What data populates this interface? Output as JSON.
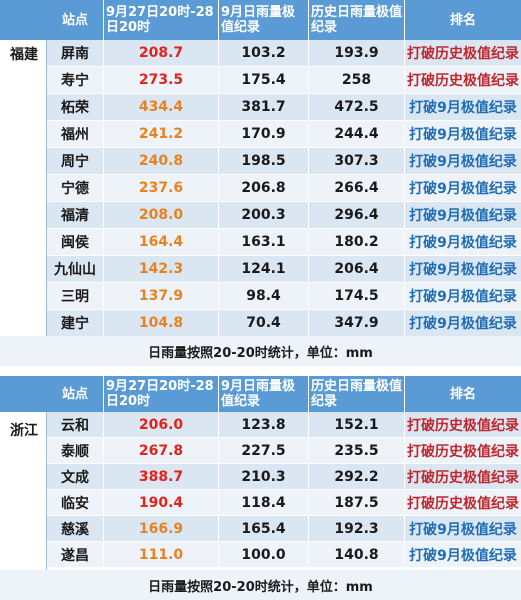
{
  "headers": {
    "station": "站点",
    "period": "9月27日20时-28日20时",
    "sept_record": "9月日雨量极值纪录",
    "hist_record": "历史日雨量极值纪录",
    "rank": "排名"
  },
  "fujian": {
    "province": "福建",
    "rows": [
      {
        "station": "屏南",
        "rain": "208.7",
        "sept": "103.2",
        "hist": "193.9",
        "rank": "打破历史极值纪录",
        "rain_color": "red",
        "rank_color": "red"
      },
      {
        "station": "寿宁",
        "rain": "273.5",
        "sept": "175.4",
        "hist": "258",
        "rank": "打破历史极值纪录",
        "rain_color": "red",
        "rank_color": "red"
      },
      {
        "station": "柘荣",
        "rain": "434.4",
        "sept": "381.7",
        "hist": "472.5",
        "rank": "打破9月极值纪录",
        "rain_color": "orange",
        "rank_color": "blue"
      },
      {
        "station": "福州",
        "rain": "241.2",
        "sept": "170.9",
        "hist": "244.4",
        "rank": "打破9月极值纪录",
        "rain_color": "orange",
        "rank_color": "blue"
      },
      {
        "station": "周宁",
        "rain": "240.8",
        "sept": "198.5",
        "hist": "307.3",
        "rank": "打破9月极值纪录",
        "rain_color": "orange",
        "rank_color": "blue"
      },
      {
        "station": "宁德",
        "rain": "237.6",
        "sept": "206.8",
        "hist": "266.4",
        "rank": "打破9月极值纪录",
        "rain_color": "orange",
        "rank_color": "blue"
      },
      {
        "station": "福清",
        "rain": "208.0",
        "sept": "200.3",
        "hist": "296.4",
        "rank": "打破9月极值纪录",
        "rain_color": "orange",
        "rank_color": "blue"
      },
      {
        "station": "闽侯",
        "rain": "164.4",
        "sept": "163.1",
        "hist": "180.2",
        "rank": "打破9月极值纪录",
        "rain_color": "orange",
        "rank_color": "blue"
      },
      {
        "station": "九仙山",
        "rain": "142.3",
        "sept": "124.1",
        "hist": "206.4",
        "rank": "打破9月极值纪录",
        "rain_color": "orange",
        "rank_color": "blue"
      },
      {
        "station": "三明",
        "rain": "137.9",
        "sept": "98.4",
        "hist": "174.5",
        "rank": "打破9月极值纪录",
        "rain_color": "orange",
        "rank_color": "blue"
      },
      {
        "station": "建宁",
        "rain": "104.8",
        "sept": "70.4",
        "hist": "347.9",
        "rank": "打破9月极值纪录",
        "rain_color": "orange",
        "rank_color": "blue"
      }
    ],
    "footer": "日雨量按照20-20时统计，单位：mm"
  },
  "zhejiang": {
    "province": "浙江",
    "rows": [
      {
        "station": "云和",
        "rain": "206.0",
        "sept": "123.8",
        "hist": "152.1",
        "rank": "打破历史极值纪录",
        "rain_color": "red",
        "rank_color": "red"
      },
      {
        "station": "泰顺",
        "rain": "267.8",
        "sept": "227.5",
        "hist": "235.5",
        "rank": "打破历史极值纪录",
        "rain_color": "red",
        "rank_color": "red"
      },
      {
        "station": "文成",
        "rain": "388.7",
        "sept": "210.3",
        "hist": "292.2",
        "rank": "打破历史极值纪录",
        "rain_color": "red",
        "rank_color": "red"
      },
      {
        "station": "临安",
        "rain": "190.4",
        "sept": "118.4",
        "hist": "187.5",
        "rank": "打破历史极值纪录",
        "rain_color": "red",
        "rank_color": "red"
      },
      {
        "station": "慈溪",
        "rain": "166.9",
        "sept": "165.4",
        "hist": "192.3",
        "rank": "打破9月极值纪录",
        "rain_color": "orange",
        "rank_color": "blue"
      },
      {
        "station": "遂昌",
        "rain": "111.0",
        "sept": "100.0",
        "hist": "140.8",
        "rank": "打破9月极值纪录",
        "rain_color": "orange",
        "rank_color": "blue"
      }
    ],
    "footer": "日雨量按照20-20时统计，单位：mm"
  }
}
